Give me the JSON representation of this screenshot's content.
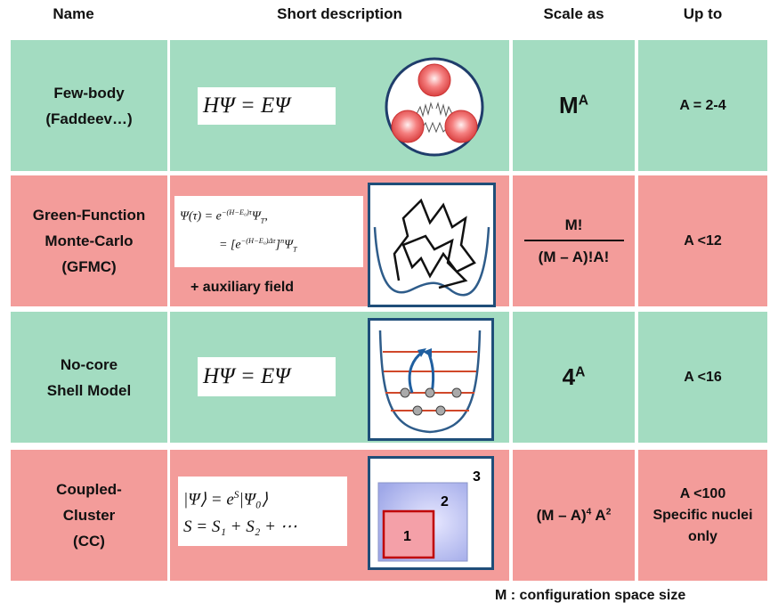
{
  "header": {
    "name": "Name",
    "description": "Short description",
    "scale": "Scale as",
    "upto": "Up to"
  },
  "rows": [
    {
      "color": "#a3dcc1",
      "name": [
        "Few-body",
        "(Faddeev…)"
      ],
      "formula": [
        [
          {
            "text": "HΨ = EΨ"
          }
        ]
      ],
      "scale": [
        {
          "text": "M"
        },
        {
          "text": "A",
          "style": "sup"
        }
      ],
      "upto": [
        "A = 2-4"
      ]
    },
    {
      "color": "#f39c9a",
      "name": [
        "Green-Function",
        "Monte-Carlo",
        "(GFMC)"
      ],
      "formula": [
        [
          {
            "text": "Ψ(τ) = e"
          },
          {
            "text": "−(H−E₀)τ",
            "style": "sup"
          },
          {
            "text": "Ψ"
          },
          {
            "text": "T",
            "style": "sub"
          },
          {
            "text": ","
          }
        ],
        [
          {
            "text": "= [e"
          },
          {
            "text": "−(H−E₀)Δτ",
            "style": "sup"
          },
          {
            "text": "]"
          },
          {
            "text": "n",
            "style": "sup"
          },
          {
            "text": "Ψ"
          },
          {
            "text": "T",
            "style": "sub"
          }
        ]
      ],
      "note": "+ auxiliary field",
      "scale_fraction": {
        "numerator": "M!",
        "denominator": "(M – A)!A!"
      },
      "upto": [
        "A <12"
      ]
    },
    {
      "color": "#a3dcc1",
      "name": [
        "No-core",
        "Shell Model"
      ],
      "formula": [
        [
          {
            "text": "HΨ = EΨ"
          }
        ]
      ],
      "scale": [
        {
          "text": "4"
        },
        {
          "text": "A",
          "style": "sup"
        }
      ],
      "upto": [
        "A <16"
      ]
    },
    {
      "color": "#f39c9a",
      "name": [
        "Coupled-",
        "Cluster",
        "(CC)"
      ],
      "formula": [
        [
          {
            "text": "|Ψ⟩  =  e"
          },
          {
            "text": "S",
            "style": "sup"
          },
          {
            "text": "|Ψ₀⟩"
          }
        ],
        [
          {
            "text": "S = S₁ + S₂ + ⋯"
          }
        ]
      ],
      "labels": [
        "1",
        "2",
        "3"
      ],
      "scale": [
        {
          "text": "(M – A)"
        },
        {
          "text": "4",
          "style": "sup"
        },
        {
          "text": " A"
        },
        {
          "text": "2",
          "style": "sup"
        }
      ],
      "upto": [
        "A <100",
        "Specific nuclei",
        "only"
      ]
    }
  ],
  "footer": "M : configuration space size"
}
